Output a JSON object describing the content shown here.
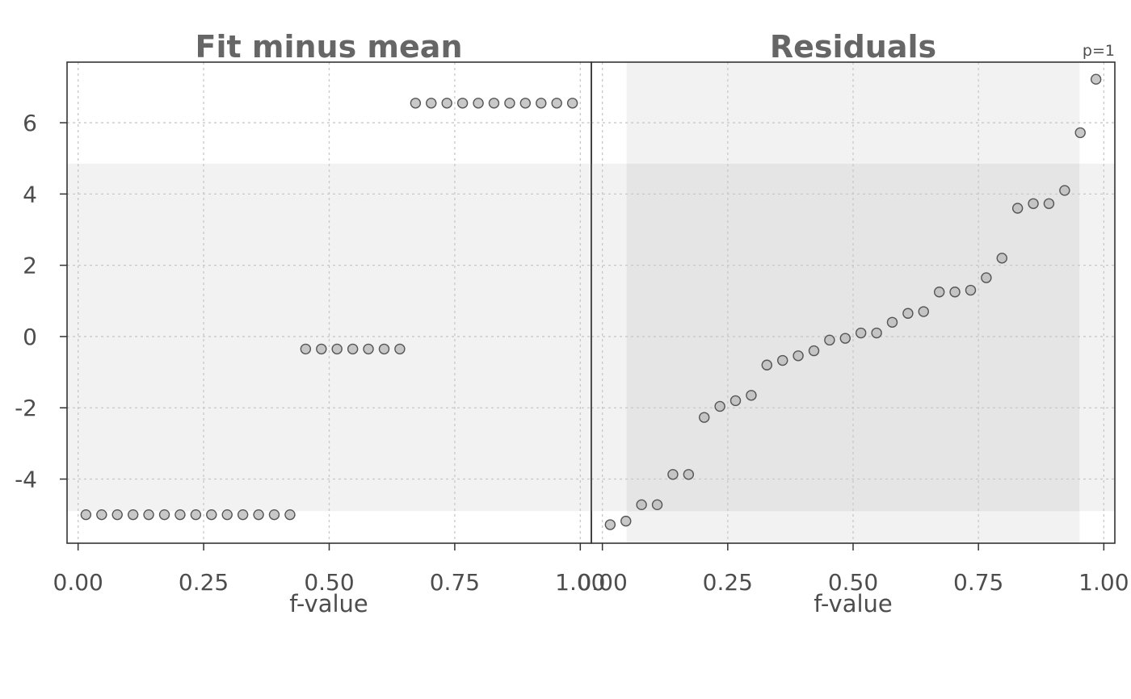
{
  "chart_data": {
    "type": "scatter",
    "grid": true,
    "ylim": [
      -5.8,
      7.7
    ],
    "y_ticks": [
      "-4",
      "-2",
      "0",
      "2",
      "4",
      "6"
    ],
    "y_tick_values": [
      -4,
      -2,
      0,
      2,
      4,
      6
    ],
    "x_ticks": [
      "0.00",
      "0.25",
      "0.50",
      "0.75",
      "1.00"
    ],
    "x_tick_values": [
      0,
      0.25,
      0.5,
      0.75,
      1
    ],
    "colors": {
      "point_fill": "#bebebe",
      "point_stroke": "#555555",
      "band": "#f2f2f2",
      "overlap": "#e5e5e5",
      "grid": "#c8c8c8",
      "frame": "#333333"
    },
    "panels": [
      {
        "title": "Fit minus mean",
        "xlabel": "f-value",
        "xlim": [
          -0.022,
          1.022
        ],
        "y_band": [
          -4.9,
          4.85
        ],
        "series": [
          {
            "y": -5.0,
            "x": [
              0.0156,
              0.0469,
              0.0781,
              0.1094,
              0.1406,
              0.1719,
              0.2031,
              0.2344,
              0.2656,
              0.2969,
              0.3281,
              0.3594,
              0.3906,
              0.4219
            ]
          },
          {
            "y": -0.35,
            "x": [
              0.4531,
              0.4844,
              0.5156,
              0.5469,
              0.5781,
              0.6094,
              0.6406
            ]
          },
          {
            "y": 6.55,
            "x": [
              0.6719,
              0.7031,
              0.7344,
              0.7656,
              0.7969,
              0.8281,
              0.8594,
              0.8906,
              0.9219,
              0.9531,
              0.9844
            ]
          }
        ]
      },
      {
        "title": "Residuals",
        "xlabel": "f-value",
        "xlim": [
          -0.022,
          1.022
        ],
        "annotation": "p=1",
        "x_band": [
          0.0484,
          0.9516
        ],
        "y_band": [
          -4.9,
          4.85
        ],
        "points": [
          [
            0.0156,
            -5.28
          ],
          [
            0.0469,
            -5.18
          ],
          [
            0.0781,
            -4.72
          ],
          [
            0.1094,
            -4.72
          ],
          [
            0.1406,
            -3.87
          ],
          [
            0.1719,
            -3.87
          ],
          [
            0.2031,
            -2.27
          ],
          [
            0.2344,
            -1.96
          ],
          [
            0.2656,
            -1.8
          ],
          [
            0.2969,
            -1.65
          ],
          [
            0.3281,
            -0.8
          ],
          [
            0.3594,
            -0.67
          ],
          [
            0.3906,
            -0.54
          ],
          [
            0.4219,
            -0.4
          ],
          [
            0.4531,
            -0.1
          ],
          [
            0.4844,
            -0.05
          ],
          [
            0.5156,
            0.1
          ],
          [
            0.5469,
            0.1
          ],
          [
            0.5781,
            0.4
          ],
          [
            0.6094,
            0.65
          ],
          [
            0.6406,
            0.7
          ],
          [
            0.6719,
            1.25
          ],
          [
            0.7031,
            1.25
          ],
          [
            0.7344,
            1.3
          ],
          [
            0.7656,
            1.65
          ],
          [
            0.7969,
            2.2
          ],
          [
            0.8281,
            3.6
          ],
          [
            0.8594,
            3.73
          ],
          [
            0.8906,
            3.73
          ],
          [
            0.9219,
            4.1
          ],
          [
            0.9531,
            5.72
          ],
          [
            0.9844,
            7.22
          ]
        ]
      }
    ]
  }
}
